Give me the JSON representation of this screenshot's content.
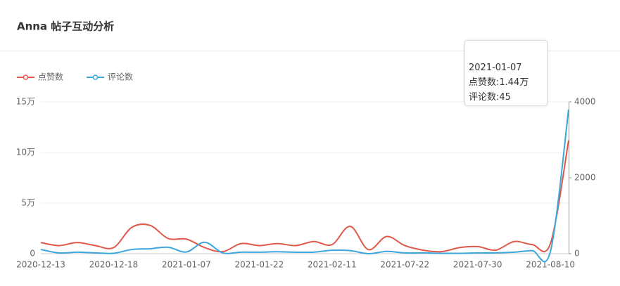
{
  "chart_data": {
    "type": "line",
    "title": "Anna 帖子互动分析",
    "categories": [
      "2020-12-13",
      null,
      null,
      null,
      "2020-12-18",
      null,
      null,
      null,
      "2021-01-07",
      null,
      null,
      null,
      "2021-01-22",
      null,
      null,
      null,
      "2021-02-11",
      null,
      null,
      null,
      "2021-07-22",
      null,
      null,
      null,
      "2021-07-30",
      null,
      null,
      null,
      "2021-08-10",
      null
    ],
    "series": [
      {
        "name": "点赞数",
        "color": "#e0584a",
        "values": [
          11000,
          8000,
          11000,
          8000,
          6000,
          26000,
          28000,
          15000,
          14400,
          6000,
          2000,
          10000,
          8000,
          10000,
          8000,
          12000,
          9000,
          27000,
          4000,
          17000,
          8000,
          3500,
          2000,
          6000,
          7000,
          3500,
          12000,
          9000,
          10000,
          112000
        ]
      },
      {
        "name": "评论数",
        "color": "#3ba7dc",
        "axis": "y2",
        "values": [
          110,
          20,
          40,
          20,
          10,
          110,
          130,
          170,
          45,
          300,
          20,
          40,
          40,
          50,
          40,
          40,
          90,
          80,
          0,
          60,
          20,
          20,
          10,
          10,
          20,
          20,
          40,
          80,
          60,
          3800
        ]
      }
    ],
    "ylim": [
      0,
      150000
    ],
    "yticks": [
      0,
      {
        "value": 50000,
        "label": "5万"
      },
      {
        "value": 100000,
        "label": "10万"
      },
      {
        "value": 150000,
        "label": "15万"
      }
    ],
    "y2lim": [
      0,
      4000
    ],
    "y2ticks": [
      0,
      2000,
      4000
    ],
    "grid": true,
    "tooltip": {
      "date": "2021-01-07",
      "lines": [
        "点赞数:1.44万",
        "评论数:45"
      ]
    }
  }
}
